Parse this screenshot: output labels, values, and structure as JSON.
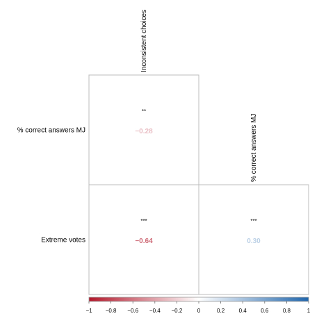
{
  "chart_data": {
    "type": "heatmap",
    "layout": "lower-triangle correlation matrix",
    "column_labels": [
      "Inconsistent choices",
      "% correct answers MJ"
    ],
    "row_labels": [
      "% correct answers MJ",
      "Extreme votes"
    ],
    "cells": [
      {
        "row": 0,
        "col": 0,
        "value": -0.28,
        "label": "−0.28",
        "significance": "**"
      },
      {
        "row": 1,
        "col": 0,
        "value": -0.64,
        "label": "−0.64",
        "significance": "***"
      },
      {
        "row": 1,
        "col": 1,
        "value": 0.3,
        "label": "0.30",
        "significance": "***"
      }
    ],
    "colorbar": {
      "range": [
        -1,
        1
      ],
      "ticks": [
        -1,
        -0.8,
        -0.6,
        -0.4,
        -0.2,
        0,
        0.2,
        0.4,
        0.6,
        0.8,
        1
      ],
      "tick_labels": [
        "−1",
        "−0.8",
        "−0.6",
        "−0.4",
        "−0.2",
        "0",
        "0.2",
        "0.4",
        "0.6",
        "0.8",
        "1"
      ],
      "placement": "bottom",
      "colors": {
        "negative": "#b2182b",
        "neutral": "#ffffff",
        "positive": "#2166ac"
      }
    }
  }
}
